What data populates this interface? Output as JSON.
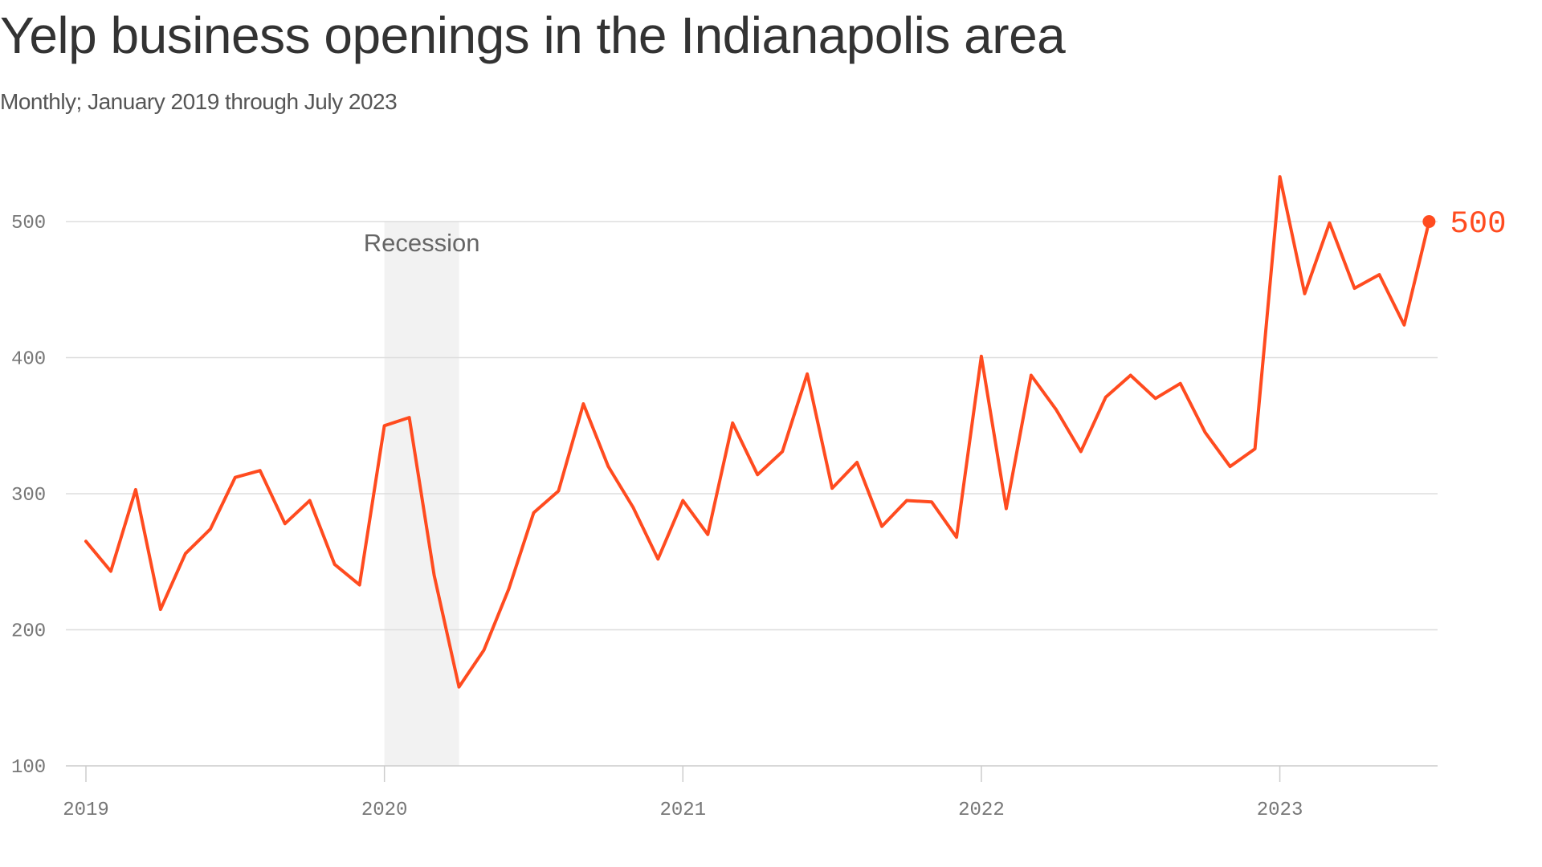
{
  "header": {
    "title": "Yelp business openings in the Indianapolis area",
    "subtitle": "Monthly; January 2019 through July 2023"
  },
  "colors": {
    "line": "#ff4b1f",
    "band": "#f2f2f2",
    "grid": "#dddddd",
    "axis": "#cccccc"
  },
  "chart_data": {
    "type": "line",
    "title": "Yelp business openings in the Indianapolis area",
    "subtitle": "Monthly; January 2019 through July 2023",
    "xlabel": "",
    "ylabel": "",
    "x_start": "2019-01",
    "x_end": "2023-07",
    "x_ticks": [
      {
        "label": "2019",
        "month": "2019-01"
      },
      {
        "label": "2020",
        "month": "2020-01"
      },
      {
        "label": "2021",
        "month": "2021-01"
      },
      {
        "label": "2022",
        "month": "2022-01"
      },
      {
        "label": "2023",
        "month": "2023-01"
      }
    ],
    "ylim": [
      100,
      550
    ],
    "y_ticks": [
      100,
      200,
      300,
      400,
      500
    ],
    "grid": true,
    "series": [
      {
        "values": [
          265,
          243,
          303,
          215,
          256,
          274,
          312,
          317,
          278,
          295,
          248,
          233,
          350,
          356,
          240,
          158,
          185,
          230,
          286,
          302,
          366,
          320,
          290,
          252,
          295,
          270,
          352,
          314,
          331,
          388,
          304,
          323,
          276,
          295,
          294,
          268,
          401,
          289,
          387,
          362,
          331,
          371,
          387,
          370,
          381,
          345,
          320,
          333,
          533,
          447,
          499,
          451,
          461,
          424,
          500
        ]
      }
    ],
    "shaded_band": {
      "label": "Recession",
      "start": "2020-01",
      "end": "2020-04"
    },
    "end_label": "500"
  }
}
